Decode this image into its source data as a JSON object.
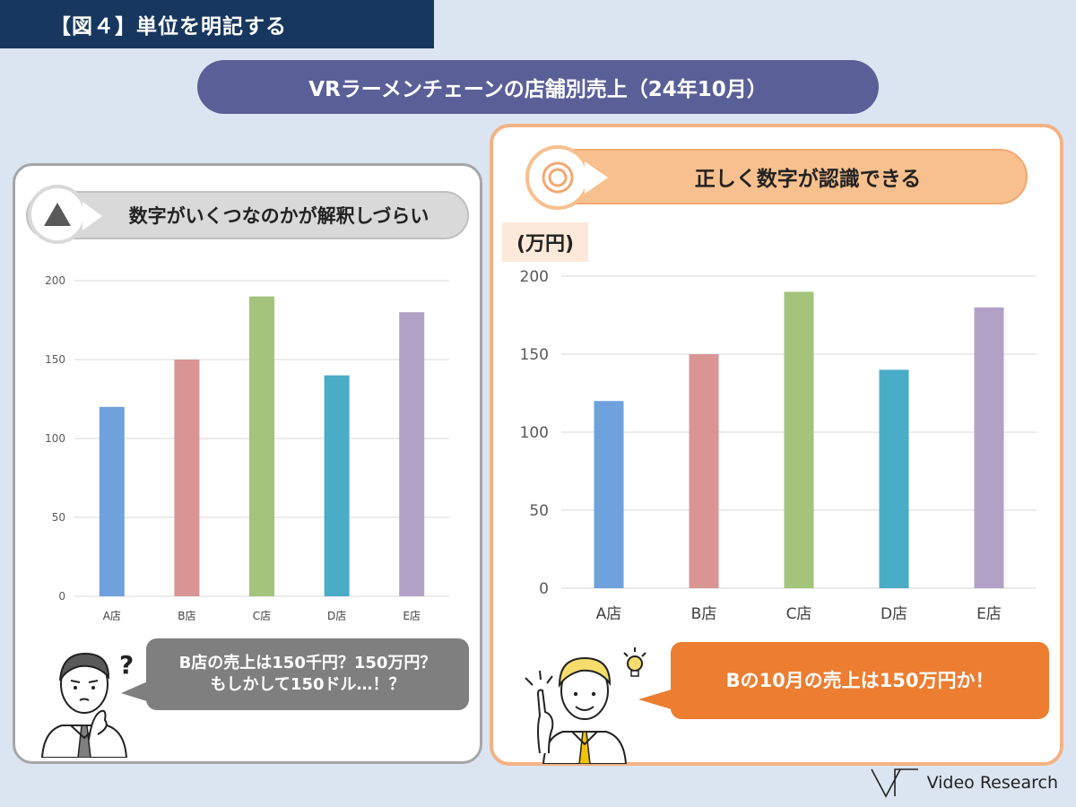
{
  "figure_label": "【図４】単位を明記する",
  "main_title": "VRラーメンチェーンの店舗別売上（24年10月）",
  "left_panel": {
    "heading": "数字がいくつなのかが解釈しづらい",
    "bubble_line1": "B店の売上は150千円？150万円？",
    "bubble_line2": "もしかして150ドル…！？",
    "icon": "triangle-icon"
  },
  "right_panel": {
    "heading": "正しく数字が認識できる",
    "unit_label": "(万円)",
    "bubble_text": "Bの10月の売上は150万円か！",
    "icon": "double-circle-icon"
  },
  "chart_data": [
    {
      "type": "bar",
      "categories": [
        "A店",
        "B店",
        "C店",
        "D店",
        "E店"
      ],
      "values": [
        120,
        150,
        190,
        140,
        180
      ],
      "ylim": [
        0,
        200
      ],
      "yticks": [
        0,
        50,
        100,
        150,
        200
      ],
      "ylabel": "",
      "grid": true,
      "colors": [
        "#6fa1dc",
        "#d99594",
        "#a3c47a",
        "#4aacc6",
        "#b2a1c7"
      ]
    },
    {
      "type": "bar",
      "categories": [
        "A店",
        "B店",
        "C店",
        "D店",
        "E店"
      ],
      "values": [
        120,
        150,
        190,
        140,
        180
      ],
      "ylim": [
        0,
        200
      ],
      "yticks": [
        0,
        50,
        100,
        150,
        200
      ],
      "ylabel": "(万円)",
      "grid": true,
      "colors": [
        "#6fa1dc",
        "#d99594",
        "#a3c47a",
        "#4aacc6",
        "#b2a1c7"
      ]
    }
  ],
  "logo_text": "Video Research"
}
